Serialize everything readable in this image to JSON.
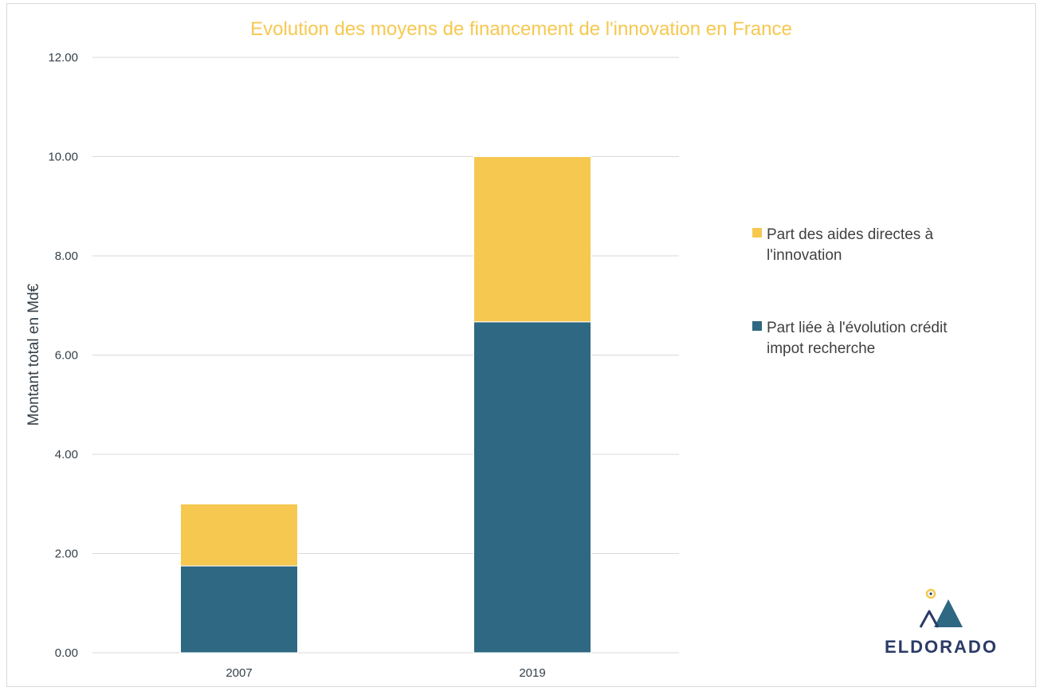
{
  "chart_data": {
    "type": "bar",
    "stacked": true,
    "title": "Evolution des moyens de financement de l'innovation en France",
    "ylabel": "Montant total en Md€",
    "xlabel": "",
    "categories": [
      "2007",
      "2019"
    ],
    "series": [
      {
        "name": "Part liée à l'évolution crédit impot recherche",
        "name_lines": [
          "Part liée à l'évolution crédit",
          "impot recherche"
        ],
        "color": "#2e6882",
        "values": [
          1.75,
          6.67
        ]
      },
      {
        "name": "Part des aides directes à l'innovation",
        "name_lines": [
          "Part des aides directes à",
          "l'innovation"
        ],
        "color": "#f6c850",
        "values": [
          1.25,
          3.33
        ]
      }
    ],
    "ylim": [
      0,
      12
    ],
    "yticks": [
      "0.00",
      "2.00",
      "4.00",
      "6.00",
      "8.00",
      "10.00",
      "12.00"
    ],
    "grid": true,
    "legend_position": "right"
  },
  "logo": {
    "text": "ELDORADO",
    "colors": {
      "dark": "#2b3a67",
      "teal": "#2e6882",
      "gold": "#f6c850"
    }
  }
}
